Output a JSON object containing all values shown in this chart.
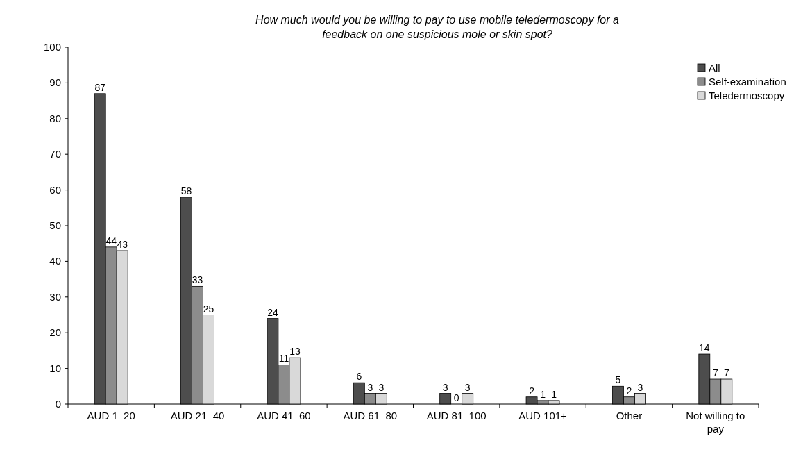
{
  "chart_data": {
    "type": "bar",
    "title": "How much would you be willing to pay to use mobile teledermoscopy for a feedback on one suspicious mole or skin spot?",
    "categories": [
      "AUD 1–20",
      "AUD 21–40",
      "AUD 41–60",
      "AUD 61–80",
      "AUD 81–100",
      "AUD 101+",
      "Other",
      "Not willing to pay"
    ],
    "series": [
      {
        "name": "All",
        "color": "#4d4d4d",
        "values": [
          87,
          58,
          24,
          6,
          3,
          2,
          5,
          14
        ]
      },
      {
        "name": "Self-examination",
        "color": "#8c8c8c",
        "values": [
          44,
          33,
          11,
          3,
          0,
          1,
          2,
          7
        ]
      },
      {
        "name": "Teledermoscopy",
        "color": "#d9d9d9",
        "values": [
          43,
          25,
          13,
          3,
          3,
          1,
          3,
          7
        ]
      }
    ],
    "ylim": [
      0,
      100
    ],
    "yticks": [
      0,
      10,
      20,
      30,
      40,
      50,
      60,
      70,
      80,
      90,
      100
    ],
    "grid": false,
    "legend": "top right",
    "data_labels": true
  }
}
